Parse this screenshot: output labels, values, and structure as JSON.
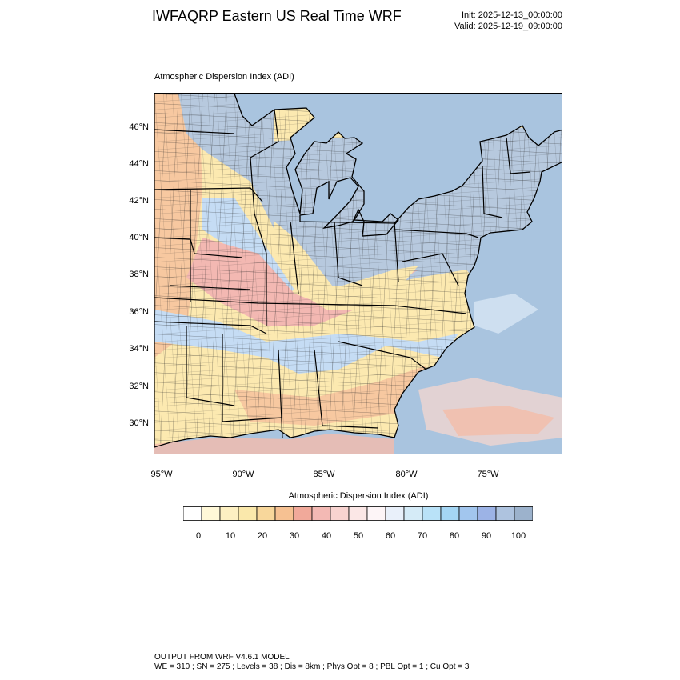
{
  "header": {
    "title": "IWFAQRP Eastern US Real Time WRF",
    "init": "Init: 2025-12-13_00:00:00",
    "valid": "Valid: 2025-12-19_09:00:00"
  },
  "panel": {
    "title": "Atmospheric Dispersion Index   (ADI)",
    "lat_labels": [
      "46°N",
      "44°N",
      "42°N",
      "40°N",
      "38°N",
      "36°N",
      "34°N",
      "32°N",
      "30°N"
    ],
    "lon_labels": [
      "95°W",
      "90°W",
      "85°W",
      "80°W",
      "75°W"
    ]
  },
  "colorbar": {
    "title": "Atmospheric Dispersion Index (ADI)",
    "tick_labels": [
      "0",
      "10",
      "20",
      "30",
      "40",
      "50",
      "60",
      "70",
      "80",
      "90",
      "100"
    ],
    "colors": [
      "#ffffff",
      "#fff8d8",
      "#fdf0c2",
      "#fae8ab",
      "#f8d79b",
      "#f6c192",
      "#f1a99a",
      "#f3b9b4",
      "#f8d3d0",
      "#fbe7e6",
      "#fdf5f7",
      "#e9f0fa",
      "#d5ebf7",
      "#b9e2f8",
      "#a4d6f4",
      "#a2c6ee",
      "#9cb3e6",
      "#aec3df",
      "#9cb2cc"
    ]
  },
  "map_colors": {
    "ocean": "#a9c4df",
    "lakes": "#a5bfd9",
    "dry": "#fce9b0",
    "warm": "#f7c8a0",
    "pink": "#f3b8b2",
    "bluegray": "#b7c9de",
    "ltblue": "#c5dcf4"
  },
  "footer": {
    "line1": "OUTPUT FROM WRF V4.6.1 MODEL",
    "line2": "WE = 310 ; SN = 275 ; Levels = 38 ; Dis = 8km ; Phys Opt = 8 ; PBL Opt = 1 ; Cu Opt = 3"
  }
}
